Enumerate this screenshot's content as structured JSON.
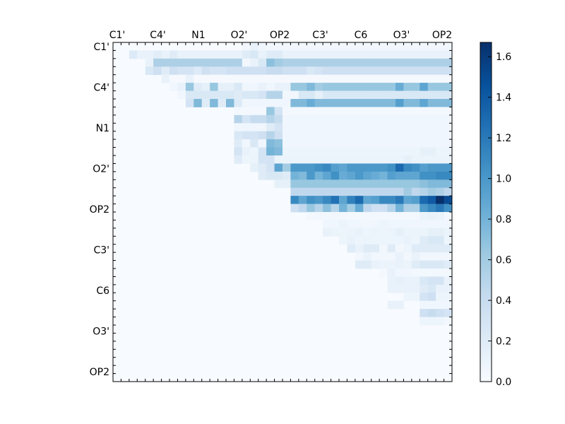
{
  "chart_data": {
    "type": "heatmap",
    "colormap": "Blues",
    "x_tick_labels": [
      "C1'",
      "C4'",
      "N1",
      "O2'",
      "OP2",
      "C3'",
      "C6",
      "O3'",
      "OP2"
    ],
    "y_tick_labels": [
      "C1'",
      "C4'",
      "N1",
      "O2'",
      "OP2",
      "C3'",
      "C6",
      "O3'",
      "OP2"
    ],
    "colorbar": {
      "min": 0.0,
      "max": 1.67,
      "ticks": [
        "0.0",
        "0.2",
        "0.4",
        "0.6",
        "0.8",
        "1.0",
        "1.2",
        "1.4",
        "1.6"
      ]
    },
    "grid_size": 42,
    "row_fill": [
      {
        "row": 0,
        "start": 16,
        "end": 41,
        "value": 0.05
      },
      {
        "row": 1,
        "start": 2,
        "end": 41,
        "value": 0.12
      },
      {
        "row": 2,
        "start": 4,
        "end": 41,
        "value": 0.55
      },
      {
        "row": 3,
        "start": 4,
        "end": 41,
        "value": 0.35
      },
      {
        "row": 4,
        "start": 6,
        "end": 41,
        "value": 0.02
      },
      {
        "row": 5,
        "start": 7,
        "end": 41,
        "value": 0.65
      },
      {
        "row": 6,
        "start": 9,
        "end": 41,
        "value": 0.25
      },
      {
        "row": 7,
        "start": 9,
        "end": 41,
        "value": 0.75
      },
      {
        "row": 8,
        "start": 15,
        "end": 41,
        "value": 0.04
      },
      {
        "row": 9,
        "start": 15,
        "end": 41,
        "value": 0.06
      },
      {
        "row": 10,
        "start": 15,
        "end": 41,
        "value": 0.06
      },
      {
        "row": 11,
        "start": 15,
        "end": 41,
        "value": 0.06
      },
      {
        "row": 12,
        "start": 15,
        "end": 41,
        "value": 0.06
      },
      {
        "row": 13,
        "start": 15,
        "end": 41,
        "value": 0.08
      },
      {
        "row": 14,
        "start": 16,
        "end": 41,
        "value": 0.1
      },
      {
        "row": 15,
        "start": 17,
        "end": 41,
        "value": 1.0
      },
      {
        "row": 16,
        "start": 18,
        "end": 41,
        "value": 0.9
      },
      {
        "row": 17,
        "start": 20,
        "end": 41,
        "value": 0.65
      },
      {
        "row": 18,
        "start": 22,
        "end": 41,
        "value": 0.45
      },
      {
        "row": 19,
        "start": 22,
        "end": 41,
        "value": 1.1
      },
      {
        "row": 20,
        "start": 22,
        "end": 41,
        "value": 0.5
      },
      {
        "row": 21,
        "start": 24,
        "end": 41,
        "value": 0.04
      },
      {
        "row": 22,
        "start": 26,
        "end": 41,
        "value": 0.06
      },
      {
        "row": 23,
        "start": 26,
        "end": 41,
        "value": 0.1
      },
      {
        "row": 24,
        "start": 28,
        "end": 41,
        "value": 0.08
      },
      {
        "row": 25,
        "start": 29,
        "end": 41,
        "value": 0.2
      },
      {
        "row": 26,
        "start": 30,
        "end": 41,
        "value": 0.05
      },
      {
        "row": 27,
        "start": 30,
        "end": 41,
        "value": 0.2
      },
      {
        "row": 28,
        "start": 33,
        "end": 41,
        "value": 0.04
      },
      {
        "row": 29,
        "start": 34,
        "end": 41,
        "value": 0.12
      },
      {
        "row": 30,
        "start": 34,
        "end": 41,
        "value": 0.12
      },
      {
        "row": 31,
        "start": 36,
        "end": 41,
        "value": 0.08
      },
      {
        "row": 32,
        "start": 38,
        "end": 41,
        "value": 0.06
      },
      {
        "row": 33,
        "start": 38,
        "end": 41,
        "value": 0.3
      },
      {
        "row": 34,
        "start": 38,
        "end": 41,
        "value": 0.05
      }
    ],
    "cells": [
      [
        0,
        16,
        0.05
      ],
      [
        0,
        17,
        0.12
      ],
      [
        0,
        18,
        0.06
      ],
      [
        1,
        2,
        0.22
      ],
      [
        1,
        3,
        0.12
      ],
      [
        1,
        5,
        0.18
      ],
      [
        1,
        7,
        0.2
      ],
      [
        1,
        15,
        0.12
      ],
      [
        1,
        16,
        0.2
      ],
      [
        1,
        17,
        0.25
      ],
      [
        1,
        19,
        0.2
      ],
      [
        1,
        20,
        0.2
      ],
      [
        2,
        4,
        0.12
      ],
      [
        2,
        16,
        0.05
      ],
      [
        2,
        17,
        0.12
      ],
      [
        2,
        18,
        0.25
      ],
      [
        2,
        19,
        0.7
      ],
      [
        2,
        20,
        0.6
      ],
      [
        2,
        21,
        0.55
      ],
      [
        3,
        4,
        0.25
      ],
      [
        3,
        6,
        0.2
      ],
      [
        3,
        8,
        0.3
      ],
      [
        3,
        9,
        0.3
      ],
      [
        3,
        10,
        0.22
      ],
      [
        3,
        12,
        0.3
      ],
      [
        3,
        13,
        0.3
      ],
      [
        3,
        19,
        0.4
      ],
      [
        3,
        20,
        0.4
      ],
      [
        3,
        21,
        0.35
      ],
      [
        3,
        24,
        0.25
      ],
      [
        3,
        25,
        0.3
      ],
      [
        4,
        6,
        0.12
      ],
      [
        4,
        9,
        0.12
      ],
      [
        5,
        7,
        0.06
      ],
      [
        5,
        8,
        0.12
      ],
      [
        5,
        10,
        0.2
      ],
      [
        5,
        11,
        0.15
      ],
      [
        5,
        13,
        0.15
      ],
      [
        5,
        14,
        0.15
      ],
      [
        5,
        15,
        0.25
      ],
      [
        5,
        16,
        0.06
      ],
      [
        5,
        17,
        0.06
      ],
      [
        5,
        18,
        0.12
      ],
      [
        5,
        19,
        0.06
      ],
      [
        5,
        20,
        0.12
      ],
      [
        5,
        21,
        0.12
      ],
      [
        5,
        24,
        0.75
      ],
      [
        5,
        25,
        0.6
      ],
      [
        5,
        35,
        0.85
      ],
      [
        5,
        38,
        0.9
      ],
      [
        6,
        8,
        0.06
      ],
      [
        6,
        15,
        0.2
      ],
      [
        6,
        18,
        0.3
      ],
      [
        6,
        19,
        0.5
      ],
      [
        6,
        20,
        0.5
      ],
      [
        6,
        21,
        0.05
      ],
      [
        6,
        22,
        0.05
      ],
      [
        6,
        25,
        0.15
      ],
      [
        7,
        9,
        0.3
      ],
      [
        7,
        11,
        0.2
      ],
      [
        7,
        13,
        0.2
      ],
      [
        7,
        15,
        0.22
      ],
      [
        7,
        16,
        0.06
      ],
      [
        7,
        17,
        0.06
      ],
      [
        7,
        18,
        0.06
      ],
      [
        7,
        19,
        0.06
      ],
      [
        7,
        20,
        0.06
      ],
      [
        7,
        21,
        0.06
      ],
      [
        7,
        24,
        0.85
      ],
      [
        7,
        35,
        0.95
      ],
      [
        7,
        38,
        0.9
      ],
      [
        8,
        19,
        0.65
      ],
      [
        8,
        20,
        0.3
      ],
      [
        9,
        15,
        0.5
      ],
      [
        9,
        16,
        0.3
      ],
      [
        9,
        17,
        0.4
      ],
      [
        9,
        18,
        0.4
      ],
      [
        9,
        19,
        0.5
      ],
      [
        9,
        20,
        0.4
      ],
      [
        10,
        19,
        0.2
      ],
      [
        10,
        20,
        0.3
      ],
      [
        11,
        15,
        0.25
      ],
      [
        11,
        16,
        0.3
      ],
      [
        11,
        17,
        0.3
      ],
      [
        11,
        18,
        0.35
      ],
      [
        11,
        19,
        0.5
      ],
      [
        11,
        20,
        0.35
      ],
      [
        12,
        15,
        0.2
      ],
      [
        12,
        17,
        0.25
      ],
      [
        12,
        19,
        0.75
      ],
      [
        12,
        20,
        0.7
      ],
      [
        13,
        15,
        0.3
      ],
      [
        13,
        16,
        0.12
      ],
      [
        13,
        18,
        0.3
      ],
      [
        13,
        19,
        0.8
      ],
      [
        13,
        20,
        0.75
      ],
      [
        13,
        38,
        0.15
      ],
      [
        13,
        39,
        0.15
      ],
      [
        14,
        15,
        0.2
      ],
      [
        14,
        16,
        0.08
      ],
      [
        14,
        17,
        0.1
      ],
      [
        14,
        18,
        0.3
      ],
      [
        14,
        19,
        0.3
      ],
      [
        14,
        20,
        0.1
      ],
      [
        14,
        36,
        0.15
      ],
      [
        15,
        17,
        0.15
      ],
      [
        15,
        18,
        0.2
      ],
      [
        15,
        19,
        0.3
      ],
      [
        15,
        20,
        0.9
      ],
      [
        15,
        21,
        0.6
      ],
      [
        15,
        25,
        1.05
      ],
      [
        15,
        26,
        1.1
      ],
      [
        15,
        27,
        0.95
      ],
      [
        15,
        28,
        0.9
      ],
      [
        15,
        33,
        1.0
      ],
      [
        15,
        34,
        1.05
      ],
      [
        15,
        35,
        1.3
      ],
      [
        15,
        36,
        1.1
      ],
      [
        15,
        37,
        1.05
      ],
      [
        15,
        38,
        0.95
      ],
      [
        15,
        39,
        1.0
      ],
      [
        16,
        18,
        0.2
      ],
      [
        16,
        19,
        0.25
      ],
      [
        16,
        20,
        0.25
      ],
      [
        16,
        21,
        0.2
      ],
      [
        16,
        22,
        0.8
      ],
      [
        16,
        23,
        0.75
      ],
      [
        16,
        24,
        1.0
      ],
      [
        16,
        25,
        0.8
      ],
      [
        16,
        27,
        1.05
      ],
      [
        16,
        28,
        0.85
      ],
      [
        16,
        30,
        1.0
      ],
      [
        16,
        31,
        0.9
      ],
      [
        16,
        32,
        0.85
      ],
      [
        16,
        33,
        0.8
      ],
      [
        16,
        34,
        0.95
      ],
      [
        16,
        35,
        0.9
      ],
      [
        16,
        38,
        1.05
      ],
      [
        16,
        39,
        1.05
      ],
      [
        16,
        40,
        1.1
      ],
      [
        16,
        41,
        1.1
      ],
      [
        17,
        20,
        0.15
      ],
      [
        17,
        21,
        0.15
      ],
      [
        17,
        38,
        0.7
      ],
      [
        17,
        39,
        0.75
      ],
      [
        17,
        40,
        0.75
      ],
      [
        17,
        41,
        0.75
      ],
      [
        18,
        36,
        0.6
      ],
      [
        18,
        38,
        0.5
      ],
      [
        18,
        39,
        0.6
      ],
      [
        18,
        40,
        0.55
      ],
      [
        19,
        23,
        0.9
      ],
      [
        19,
        24,
        1.05
      ],
      [
        19,
        25,
        1.0
      ],
      [
        19,
        27,
        1.25
      ],
      [
        19,
        28,
        0.9
      ],
      [
        19,
        29,
        1.15
      ],
      [
        19,
        30,
        1.3
      ],
      [
        19,
        31,
        0.9
      ],
      [
        19,
        32,
        0.95
      ],
      [
        19,
        35,
        1.2
      ],
      [
        19,
        36,
        0.9
      ],
      [
        19,
        37,
        0.95
      ],
      [
        19,
        38,
        1.3
      ],
      [
        19,
        39,
        1.4
      ],
      [
        19,
        40,
        1.67
      ],
      [
        19,
        41,
        1.5
      ],
      [
        20,
        22,
        0.35
      ],
      [
        20,
        23,
        0.45
      ],
      [
        20,
        24,
        0.65
      ],
      [
        20,
        25,
        0.5
      ],
      [
        20,
        26,
        0.7
      ],
      [
        20,
        28,
        0.8
      ],
      [
        20,
        29,
        0.6
      ],
      [
        20,
        30,
        0.85
      ],
      [
        20,
        31,
        0.45
      ],
      [
        20,
        32,
        0.35
      ],
      [
        20,
        33,
        0.35
      ],
      [
        20,
        34,
        0.5
      ],
      [
        20,
        35,
        0.8
      ],
      [
        20,
        36,
        0.55
      ],
      [
        20,
        37,
        0.55
      ],
      [
        20,
        38,
        1.0
      ],
      [
        20,
        39,
        1.1
      ],
      [
        20,
        40,
        1.2
      ],
      [
        20,
        41,
        1.05
      ],
      [
        21,
        25,
        0.05
      ],
      [
        21,
        27,
        0.05
      ],
      [
        21,
        38,
        0.1
      ],
      [
        21,
        39,
        0.12
      ],
      [
        21,
        40,
        0.1
      ],
      [
        22,
        28,
        0.1
      ],
      [
        22,
        31,
        0.05
      ],
      [
        22,
        33,
        0.08
      ],
      [
        23,
        26,
        0.12
      ],
      [
        23,
        28,
        0.08
      ],
      [
        23,
        30,
        0.12
      ],
      [
        23,
        31,
        0.08
      ],
      [
        23,
        32,
        0.1
      ],
      [
        23,
        33,
        0.08
      ],
      [
        23,
        35,
        0.15
      ],
      [
        23,
        39,
        0.15
      ],
      [
        23,
        40,
        0.15
      ],
      [
        24,
        29,
        0.12
      ],
      [
        24,
        31,
        0.1
      ],
      [
        24,
        36,
        0.12
      ],
      [
        24,
        38,
        0.2
      ],
      [
        24,
        39,
        0.25
      ],
      [
        24,
        40,
        0.25
      ],
      [
        25,
        30,
        0.12
      ],
      [
        25,
        33,
        0.05
      ],
      [
        25,
        35,
        0.05
      ],
      [
        25,
        36,
        0.08
      ],
      [
        26,
        31,
        0.1
      ],
      [
        26,
        35,
        0.12
      ],
      [
        26,
        37,
        0.12
      ],
      [
        27,
        32,
        0.12
      ],
      [
        27,
        33,
        0.1
      ],
      [
        27,
        34,
        0.1
      ],
      [
        27,
        35,
        0.12
      ],
      [
        27,
        36,
        0.1
      ],
      [
        27,
        38,
        0.25
      ],
      [
        27,
        39,
        0.25
      ],
      [
        27,
        40,
        0.25
      ],
      [
        28,
        34,
        0.12
      ],
      [
        28,
        35,
        0.06
      ],
      [
        28,
        36,
        0.06
      ],
      [
        29,
        35,
        0.15
      ],
      [
        29,
        38,
        0.25
      ],
      [
        29,
        39,
        0.3
      ],
      [
        29,
        40,
        0.3
      ],
      [
        30,
        38,
        0.2
      ],
      [
        30,
        39,
        0.25
      ],
      [
        31,
        38,
        0.3
      ],
      [
        31,
        39,
        0.35
      ],
      [
        32,
        34,
        0.12
      ],
      [
        32,
        35,
        0.12
      ],
      [
        33,
        38,
        0.35
      ],
      [
        33,
        39,
        0.4
      ],
      [
        33,
        40,
        0.35
      ],
      [
        34,
        38,
        0.08
      ],
      [
        34,
        39,
        0.08
      ],
      [
        34,
        40,
        0.08
      ]
    ]
  }
}
